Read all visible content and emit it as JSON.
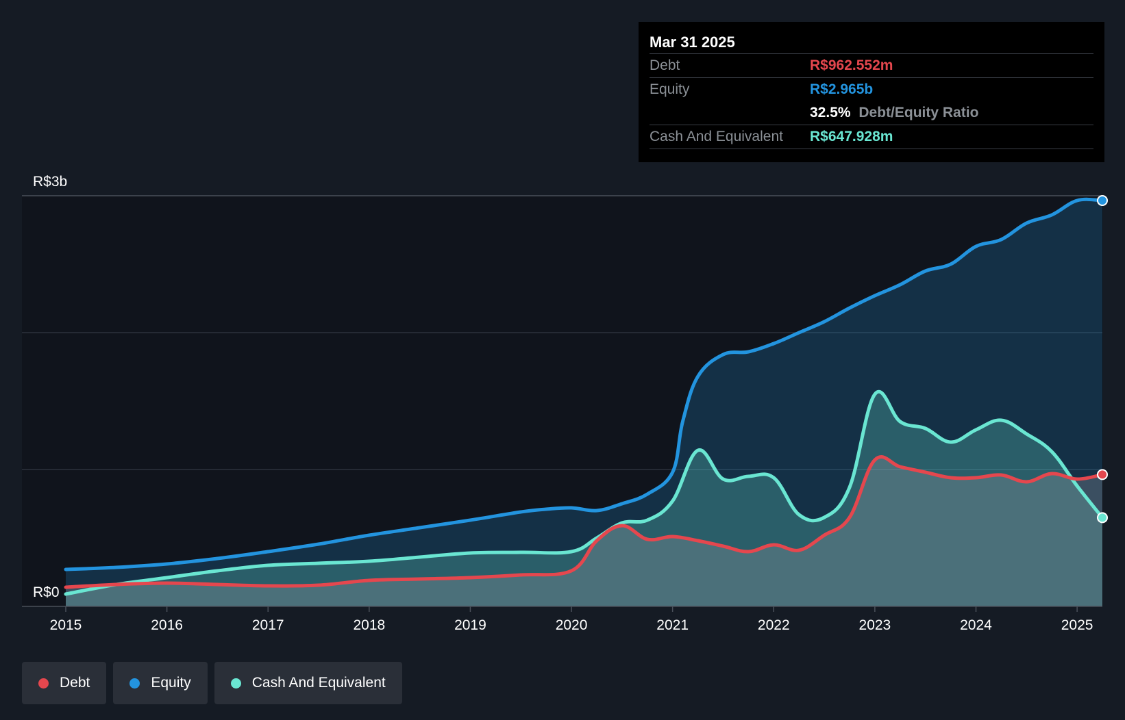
{
  "tooltip": {
    "date": "Mar 31 2025",
    "debt_label": "Debt",
    "debt_value": "R$962.552m",
    "equity_label": "Equity",
    "equity_value": "R$2.965b",
    "ratio_value": "32.5%",
    "ratio_label": "Debt/Equity Ratio",
    "cash_label": "Cash And Equivalent",
    "cash_value": "R$647.928m"
  },
  "legend": [
    {
      "label": "Debt",
      "color": "#e5474e"
    },
    {
      "label": "Equity",
      "color": "#2394df"
    },
    {
      "label": "Cash And Equivalent",
      "color": "#6ae6d2"
    }
  ],
  "chart_data": {
    "type": "area",
    "title": "",
    "xlabel": "",
    "ylabel": "",
    "ylim": [
      0,
      3.0
    ],
    "xlim": [
      2015.0,
      2025.25
    ],
    "y_tick_labels": [
      {
        "value": 3.0,
        "label": "R$3b"
      },
      {
        "value": 0,
        "label": "R$0"
      }
    ],
    "gridlines": [
      1.0,
      2.0,
      3.0
    ],
    "x_tick_labels": [
      "2015",
      "2016",
      "2017",
      "2018",
      "2019",
      "2020",
      "2021",
      "2022",
      "2023",
      "2024",
      "2025"
    ],
    "series": [
      {
        "name": "Equity",
        "color": "#2394df",
        "points": [
          [
            2015.0,
            0.27
          ],
          [
            2015.5,
            0.285
          ],
          [
            2016.0,
            0.31
          ],
          [
            2016.5,
            0.35
          ],
          [
            2017.0,
            0.4
          ],
          [
            2017.5,
            0.455
          ],
          [
            2018.0,
            0.52
          ],
          [
            2018.5,
            0.575
          ],
          [
            2019.0,
            0.63
          ],
          [
            2019.5,
            0.69
          ],
          [
            2019.75,
            0.71
          ],
          [
            2020.0,
            0.72
          ],
          [
            2020.25,
            0.7
          ],
          [
            2020.5,
            0.75
          ],
          [
            2020.75,
            0.82
          ],
          [
            2021.0,
            0.98
          ],
          [
            2021.1,
            1.35
          ],
          [
            2021.25,
            1.68
          ],
          [
            2021.5,
            1.84
          ],
          [
            2021.75,
            1.86
          ],
          [
            2022.0,
            1.92
          ],
          [
            2022.25,
            2.0
          ],
          [
            2022.5,
            2.08
          ],
          [
            2022.75,
            2.18
          ],
          [
            2023.0,
            2.27
          ],
          [
            2023.25,
            2.35
          ],
          [
            2023.5,
            2.45
          ],
          [
            2023.75,
            2.5
          ],
          [
            2024.0,
            2.63
          ],
          [
            2024.25,
            2.68
          ],
          [
            2024.5,
            2.8
          ],
          [
            2024.75,
            2.86
          ],
          [
            2025.0,
            2.965
          ],
          [
            2025.25,
            2.965
          ]
        ]
      },
      {
        "name": "Cash And Equivalent",
        "color": "#6ae6d2",
        "points": [
          [
            2015.0,
            0.09
          ],
          [
            2015.5,
            0.16
          ],
          [
            2016.0,
            0.21
          ],
          [
            2016.5,
            0.26
          ],
          [
            2017.0,
            0.3
          ],
          [
            2017.5,
            0.315
          ],
          [
            2018.0,
            0.33
          ],
          [
            2018.5,
            0.36
          ],
          [
            2019.0,
            0.39
          ],
          [
            2019.5,
            0.395
          ],
          [
            2020.0,
            0.4
          ],
          [
            2020.25,
            0.5
          ],
          [
            2020.5,
            0.61
          ],
          [
            2020.75,
            0.63
          ],
          [
            2021.0,
            0.77
          ],
          [
            2021.25,
            1.14
          ],
          [
            2021.5,
            0.93
          ],
          [
            2021.75,
            0.95
          ],
          [
            2022.0,
            0.94
          ],
          [
            2022.25,
            0.67
          ],
          [
            2022.5,
            0.65
          ],
          [
            2022.75,
            0.87
          ],
          [
            2023.0,
            1.55
          ],
          [
            2023.25,
            1.35
          ],
          [
            2023.5,
            1.3
          ],
          [
            2023.75,
            1.2
          ],
          [
            2024.0,
            1.29
          ],
          [
            2024.25,
            1.36
          ],
          [
            2024.5,
            1.26
          ],
          [
            2024.75,
            1.13
          ],
          [
            2025.0,
            0.88
          ],
          [
            2025.25,
            0.648
          ]
        ]
      },
      {
        "name": "Debt",
        "color": "#e5474e",
        "points": [
          [
            2015.0,
            0.14
          ],
          [
            2015.5,
            0.16
          ],
          [
            2016.0,
            0.17
          ],
          [
            2016.5,
            0.16
          ],
          [
            2017.0,
            0.15
          ],
          [
            2017.5,
            0.155
          ],
          [
            2018.0,
            0.19
          ],
          [
            2018.5,
            0.2
          ],
          [
            2019.0,
            0.21
          ],
          [
            2019.5,
            0.23
          ],
          [
            2020.0,
            0.26
          ],
          [
            2020.25,
            0.48
          ],
          [
            2020.5,
            0.59
          ],
          [
            2020.75,
            0.49
          ],
          [
            2021.0,
            0.51
          ],
          [
            2021.25,
            0.48
          ],
          [
            2021.5,
            0.44
          ],
          [
            2021.75,
            0.4
          ],
          [
            2022.0,
            0.45
          ],
          [
            2022.25,
            0.41
          ],
          [
            2022.5,
            0.52
          ],
          [
            2022.75,
            0.65
          ],
          [
            2023.0,
            1.07
          ],
          [
            2023.25,
            1.02
          ],
          [
            2023.5,
            0.98
          ],
          [
            2023.75,
            0.94
          ],
          [
            2024.0,
            0.94
          ],
          [
            2024.25,
            0.96
          ],
          [
            2024.5,
            0.91
          ],
          [
            2024.75,
            0.97
          ],
          [
            2025.0,
            0.93
          ],
          [
            2025.25,
            0.963
          ]
        ]
      }
    ]
  }
}
